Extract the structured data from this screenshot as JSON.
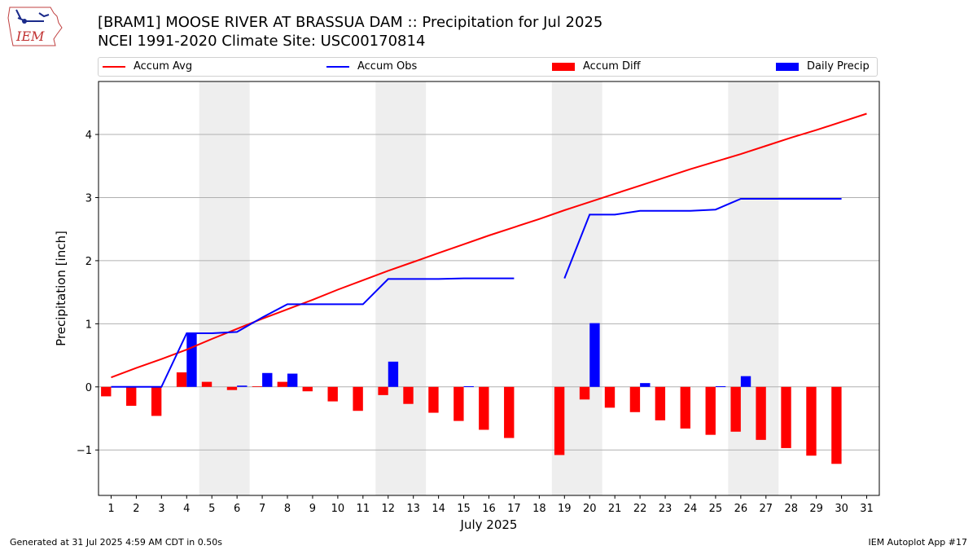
{
  "header": {
    "title_line1": "[BRAM1] MOOSE RIVER  AT BRASSUA DAM :: Precipitation for Jul 2025",
    "title_line2": "NCEI 1991-2020 Climate Site: USC00170814",
    "logo_text": "IEM"
  },
  "footer": {
    "generated": "Generated at 31 Jul 2025 4:59 AM CDT in 0.50s",
    "app": "IEM Autoplot App #17"
  },
  "colors": {
    "accum_avg": "#ff0000",
    "accum_obs": "#0000ff",
    "accum_diff": "#ff0000",
    "daily_precip": "#0000ff",
    "weekend_shade": "#eeeeee",
    "grid": "#b0b0b0"
  },
  "chart_data": {
    "type": "bar",
    "xlabel": "July 2025",
    "ylabel": "Precipitation [inch]",
    "xlim": [
      0.5,
      31.5
    ],
    "ylim": [
      -1.72,
      4.84
    ],
    "yticks": [
      -1,
      0,
      1,
      2,
      3,
      4
    ],
    "ytick_labels": [
      "−1",
      "0",
      "1",
      "2",
      "3",
      "4"
    ],
    "days": [
      1,
      2,
      3,
      4,
      5,
      6,
      7,
      8,
      9,
      10,
      11,
      12,
      13,
      14,
      15,
      16,
      17,
      18,
      19,
      20,
      21,
      22,
      23,
      24,
      25,
      26,
      27,
      28,
      29,
      30,
      31
    ],
    "weekend_spans": [
      [
        4.5,
        6.5
      ],
      [
        11.5,
        13.5
      ],
      [
        18.5,
        20.5
      ],
      [
        25.5,
        27.5
      ]
    ],
    "legend_placement": "top, above plot",
    "grid": "horizontal",
    "legend": [
      {
        "key": "accum_avg",
        "label": "Accum Avg",
        "kind": "line"
      },
      {
        "key": "accum_obs",
        "label": "Accum Obs",
        "kind": "line"
      },
      {
        "key": "accum_diff",
        "label": "Accum Diff",
        "kind": "bar"
      },
      {
        "key": "daily_precip",
        "label": "Daily Precip",
        "kind": "bar"
      }
    ],
    "series": {
      "accum_avg": [
        0.15,
        0.3,
        0.44,
        0.59,
        0.76,
        0.92,
        1.08,
        1.23,
        1.38,
        1.54,
        1.69,
        1.84,
        1.98,
        2.12,
        2.26,
        2.4,
        2.53,
        2.66,
        2.8,
        2.93,
        3.06,
        3.19,
        3.32,
        3.45,
        3.57,
        3.69,
        3.82,
        3.95,
        4.07,
        4.2,
        4.33
      ],
      "accum_obs": [
        0.0,
        0.0,
        0.0,
        0.85,
        0.85,
        0.87,
        1.1,
        1.31,
        1.31,
        1.31,
        1.31,
        1.71,
        1.71,
        1.71,
        1.72,
        1.72,
        1.72,
        null,
        1.72,
        2.73,
        2.73,
        2.79,
        2.79,
        2.79,
        2.81,
        2.98,
        2.98,
        2.98,
        2.98,
        2.98,
        null
      ],
      "accum_diff": [
        -0.15,
        -0.3,
        -0.46,
        0.23,
        0.08,
        -0.05,
        0.01,
        0.08,
        -0.07,
        -0.23,
        -0.38,
        -0.13,
        -0.27,
        -0.41,
        -0.54,
        -0.68,
        -0.81,
        null,
        -1.08,
        -0.2,
        -0.33,
        -0.4,
        -0.53,
        -0.66,
        -0.76,
        -0.71,
        -0.84,
        -0.97,
        -1.09,
        -1.22,
        null
      ],
      "daily_precip": [
        0.0,
        0.0,
        0.0,
        0.85,
        0.0,
        0.02,
        0.22,
        0.21,
        0.0,
        0.0,
        0.0,
        0.4,
        0.0,
        0.0,
        0.01,
        0.0,
        0.0,
        null,
        0.0,
        1.01,
        0.0,
        0.06,
        0.0,
        0.0,
        0.01,
        0.17,
        0.0,
        0.0,
        0.0,
        0.0,
        null
      ]
    }
  }
}
